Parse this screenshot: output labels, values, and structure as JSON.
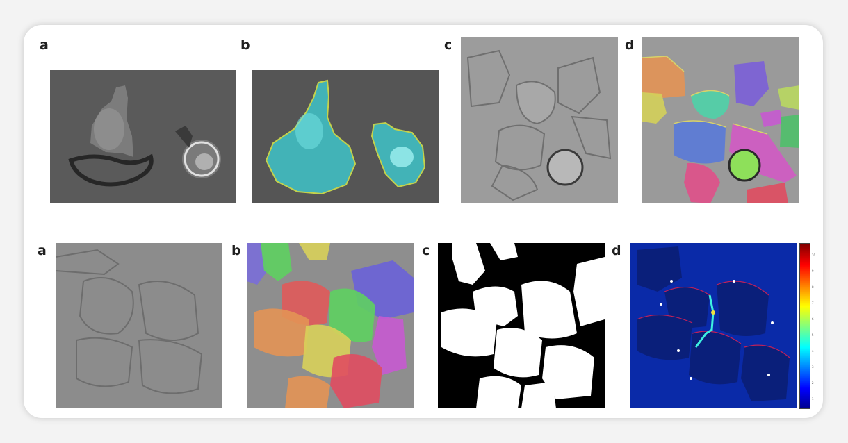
{
  "figure": {
    "top_row": {
      "labels": [
        "a",
        "b",
        "c",
        "d"
      ],
      "panels": [
        {
          "id": "a",
          "content": "phase-contrast micrograph of two cells"
        },
        {
          "id": "b",
          "content": "same cells with cyan segmentation overlay"
        },
        {
          "id": "c",
          "content": "brightfield micrograph of cell cluster"
        },
        {
          "id": "d",
          "content": "instance segmentation with colored cell masks"
        }
      ]
    },
    "bottom_row": {
      "labels": [
        "a",
        "b",
        "c",
        "d"
      ],
      "panels": [
        {
          "id": "a",
          "content": "grayscale micrograph of cell monolayer"
        },
        {
          "id": "b",
          "content": "colored instance segmentation overlay"
        },
        {
          "id": "c",
          "content": "binary mask with cell boundaries"
        },
        {
          "id": "d",
          "content": "boundary weight map with jet colorbar"
        }
      ]
    },
    "colorbar": {
      "colormap": "jet",
      "tick_labels": [
        "10",
        "9",
        "8",
        "7",
        "6",
        "5",
        "4",
        "3",
        "2",
        "1"
      ]
    },
    "colors": {
      "cyan_overlay": "#3fc4c9",
      "contour_yellow": "#d8e84a",
      "background_blue": "#0a2aa8"
    }
  }
}
